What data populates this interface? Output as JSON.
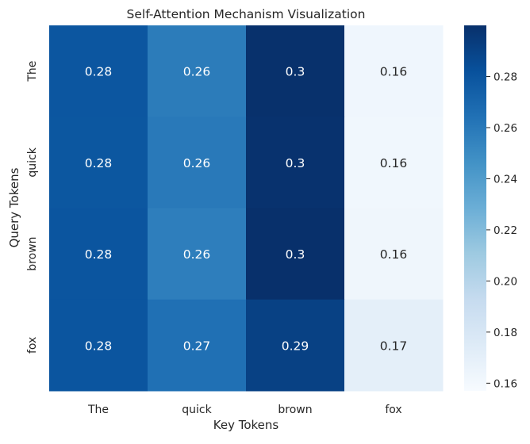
{
  "chart_data": {
    "type": "heatmap",
    "title": "Self-Attention Mechanism Visualization",
    "xlabel": "Key Tokens",
    "ylabel": "Query Tokens",
    "x_categories": [
      "The",
      "quick",
      "brown",
      "fox"
    ],
    "y_categories": [
      "The",
      "quick",
      "brown",
      "fox"
    ],
    "values": [
      [
        0.28,
        0.26,
        0.3,
        0.16
      ],
      [
        0.28,
        0.26,
        0.3,
        0.16
      ],
      [
        0.28,
        0.26,
        0.3,
        0.16
      ],
      [
        0.28,
        0.27,
        0.29,
        0.17
      ]
    ],
    "annotations": [
      [
        "0.28",
        "0.26",
        "0.3",
        "0.16"
      ],
      [
        "0.28",
        "0.26",
        "0.3",
        "0.16"
      ],
      [
        "0.28",
        "0.26",
        "0.3",
        "0.16"
      ],
      [
        "0.28",
        "0.27",
        "0.29",
        "0.17"
      ]
    ],
    "exact_values": [
      [
        0.2795,
        0.2585,
        0.2995,
        0.1625
      ],
      [
        0.279,
        0.26,
        0.299,
        0.162
      ],
      [
        0.28,
        0.257,
        0.3,
        0.163
      ],
      [
        0.28,
        0.265,
        0.291,
        0.1705
      ]
    ],
    "colormap": "Blues",
    "colorbar": {
      "range": [
        0.157,
        0.3
      ],
      "ticks": [
        0.16,
        0.18,
        0.2,
        0.22,
        0.24,
        0.26,
        0.28
      ],
      "tick_labels": [
        "0.16",
        "0.18",
        "0.20",
        "0.22",
        "0.24",
        "0.26",
        "0.28"
      ]
    }
  }
}
